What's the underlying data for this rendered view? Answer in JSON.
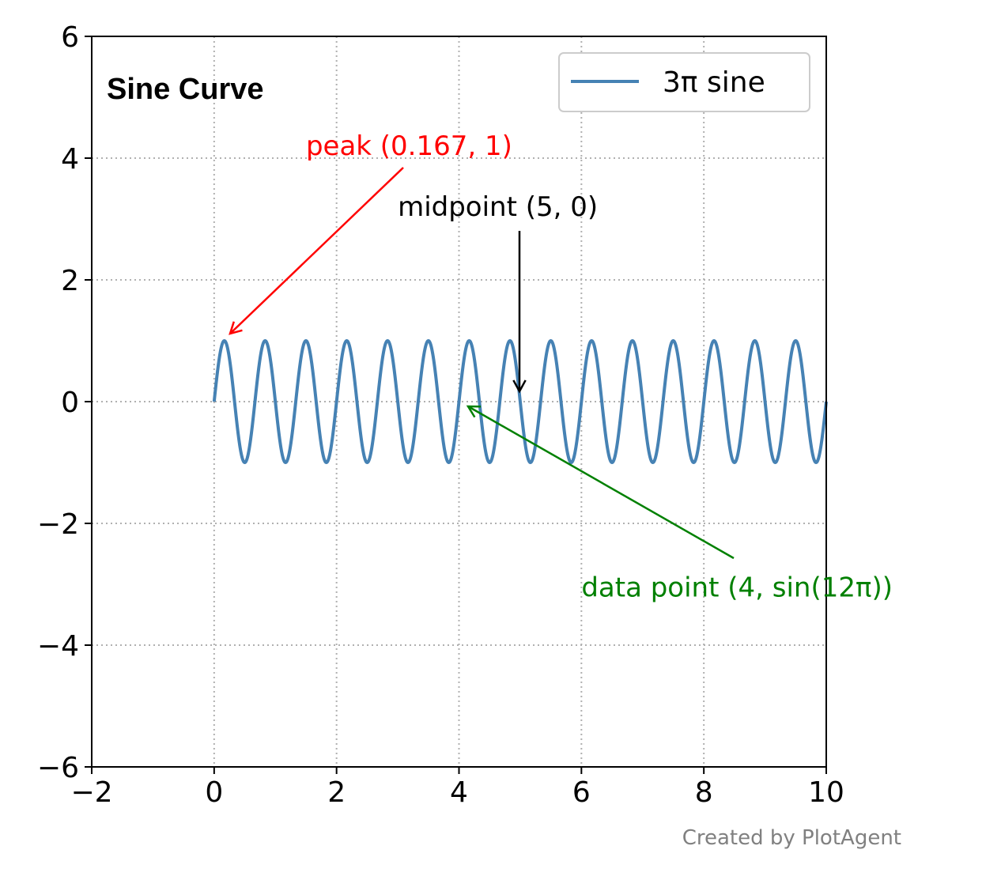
{
  "chart_data": {
    "type": "line",
    "title": "Sine Curve",
    "xlabel": "",
    "ylabel": "",
    "xlim": [
      -2,
      10
    ],
    "ylim": [
      -6,
      6
    ],
    "x_ticks": [
      -2,
      0,
      2,
      4,
      6,
      8,
      10
    ],
    "y_ticks": [
      -6,
      -4,
      -2,
      0,
      2,
      4,
      6
    ],
    "x_tick_labels": [
      "−2",
      "0",
      "2",
      "4",
      "6",
      "8",
      "10"
    ],
    "y_tick_labels": [
      "−6",
      "−4",
      "−2",
      "0",
      "2",
      "4",
      "6"
    ],
    "grid": true,
    "grid_style": "dotted",
    "legend_position": "top-right",
    "series": [
      {
        "name": "3π  sine",
        "function": "sin(3*pi*x)",
        "x_range": [
          0,
          10
        ],
        "color": "#4682b4"
      }
    ],
    "annotations": [
      {
        "text": "peak (0.167, 1)",
        "point": [
          0.167,
          1
        ],
        "text_pos": [
          1.5,
          4.05
        ],
        "color": "#ff0000"
      },
      {
        "text": "midpoint (5, 0)",
        "point": [
          5,
          0
        ],
        "text_pos": [
          3.0,
          3.05
        ],
        "color": "#000000"
      },
      {
        "text": "data point (4, sin(12π))",
        "point": [
          4,
          0
        ],
        "text_pos": [
          6.0,
          -3.2
        ],
        "color": "#008000"
      }
    ]
  },
  "credit": "Created by PlotAgent"
}
